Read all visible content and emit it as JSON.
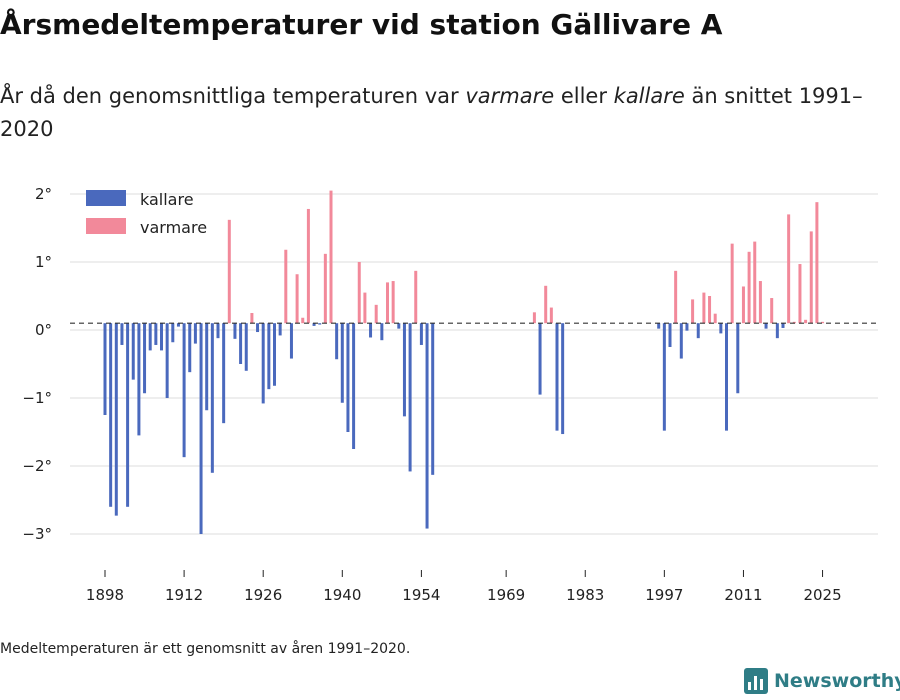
{
  "title": "Årsmedeltemperaturer vid station Gällivare A",
  "subtitle": {
    "before": "År då den genomsnittliga temperaturen var ",
    "warm": "varmare",
    "middle": " eller ",
    "cold": "kallare",
    "after": " än snittet 1991–2020"
  },
  "footnote": "Medeltemperaturen är ett genomsnitt av åren 1991–2020.",
  "brand": {
    "name": "Newsworthy",
    "icon": "bar-chart-logo-icon",
    "color": "#2f7d86"
  },
  "colors": {
    "colder": "#4a69bd",
    "warmer": "#f2899a",
    "grid": "#dddddd",
    "reference": "#333333"
  },
  "chart_data": {
    "type": "bar",
    "title": "Årsmedeltemperaturer vid station Gällivare A",
    "xlabel": "",
    "ylabel": "",
    "baseline": 0.1,
    "ylim": [
      -3.6,
      2.2
    ],
    "xlim": [
      1891,
      2029
    ],
    "yticks": [
      2,
      1,
      0,
      -1,
      -2,
      -3
    ],
    "ytick_labels": [
      "2°",
      "1°",
      "0°",
      "−1°",
      "−2°",
      "−3°"
    ],
    "xticks": [
      1898,
      1912,
      1926,
      1940,
      1954,
      1969,
      1983,
      1997,
      2011,
      2025
    ],
    "xtick_labels": [
      "1898",
      "1912",
      "1926",
      "1940",
      "1954",
      "1969",
      "1983",
      "1997",
      "2011",
      "2025"
    ],
    "legend": [
      {
        "key": "colder",
        "label": "kallare"
      },
      {
        "key": "warmer",
        "label": "varmare"
      }
    ],
    "legend_position": "top-left",
    "years": [
      1898,
      1899,
      1900,
      1901,
      1902,
      1903,
      1904,
      1905,
      1906,
      1907,
      1908,
      1909,
      1910,
      1911,
      1912,
      1913,
      1914,
      1915,
      1916,
      1917,
      1918,
      1919,
      1920,
      1921,
      1922,
      1923,
      1924,
      1925,
      1926,
      1927,
      1928,
      1929,
      1930,
      1931,
      1932,
      1933,
      1934,
      1935,
      1936,
      1937,
      1938,
      1939,
      1940,
      1941,
      1942,
      1943,
      1944,
      1945,
      1946,
      1947,
      1948,
      1949,
      1950,
      1951,
      1952,
      1953,
      1954,
      1955,
      1956,
      1974,
      1975,
      1976,
      1977,
      1978,
      1979,
      1996,
      1997,
      1998,
      1999,
      2000,
      2001,
      2002,
      2003,
      2004,
      2005,
      2006,
      2007,
      2008,
      2009,
      2010,
      2011,
      2012,
      2013,
      2014,
      2015,
      2016,
      2017,
      2018,
      2019,
      2020,
      2021,
      2022,
      2023,
      2024,
      2025
    ],
    "values": [
      -1.25,
      -2.6,
      -2.73,
      -0.22,
      -2.6,
      -0.73,
      -1.55,
      -0.93,
      -0.3,
      -0.22,
      -0.3,
      -1.0,
      -0.18,
      0.05,
      -1.87,
      -0.62,
      -0.2,
      -3.0,
      -1.18,
      -2.1,
      -0.12,
      -1.37,
      1.62,
      -0.13,
      -0.5,
      -0.6,
      0.25,
      -0.03,
      -1.08,
      -0.87,
      -0.82,
      -0.08,
      1.18,
      -0.42,
      0.82,
      0.18,
      1.78,
      0.06,
      0.08,
      1.12,
      2.05,
      -0.43,
      -1.07,
      -1.5,
      -1.75,
      1.0,
      0.55,
      -0.11,
      0.37,
      -0.15,
      0.7,
      0.72,
      0.02,
      -1.27,
      -2.08,
      0.87,
      -0.22,
      -2.92,
      -2.13,
      0.26,
      -0.95,
      0.65,
      0.33,
      -1.48,
      -1.53,
      0.02,
      -1.48,
      -0.25,
      0.87,
      -0.42,
      -0.01,
      0.45,
      -0.12,
      0.55,
      0.5,
      0.24,
      -0.05,
      -1.48,
      1.27,
      -0.93,
      0.64,
      1.15,
      1.3,
      0.72,
      0.02,
      0.47,
      -0.12,
      0.03,
      1.7,
      0.12,
      0.97,
      0.15,
      1.45,
      1.88,
      0.12
    ]
  }
}
